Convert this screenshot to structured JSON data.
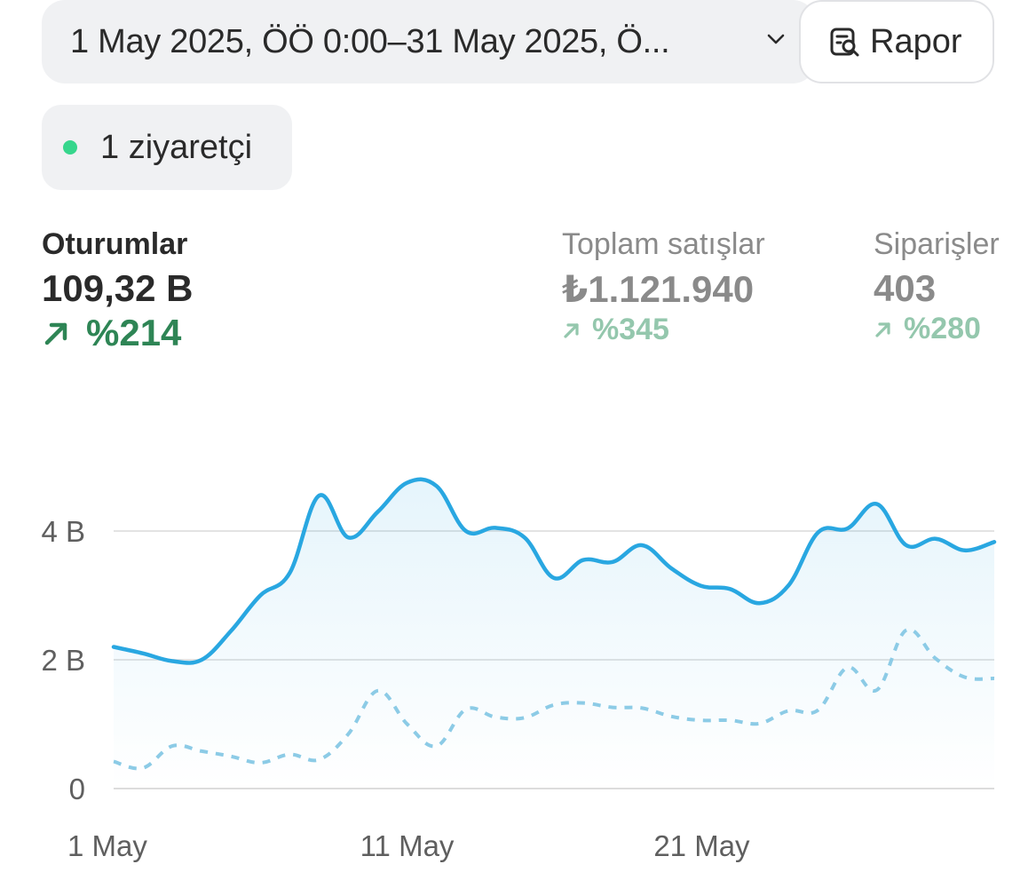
{
  "filters": {
    "date_range": "1 May 2025, ÖÖ 0:00–31 May 2025, Ö...",
    "report_label": "Rapor"
  },
  "visitors": {
    "label": "1 ziyaretçi"
  },
  "metrics": [
    {
      "label": "Oturumlar",
      "value": "109,32 B",
      "change": "%214",
      "active": true
    },
    {
      "label": "Toplam satışlar",
      "value": "₺1.121.940",
      "change": "%345",
      "active": false
    },
    {
      "label": "Siparişler",
      "value": "403",
      "change": "%280",
      "active": false
    }
  ],
  "colors": {
    "current_line": "#29a7e1",
    "previous_line": "#8ccbe6",
    "positive_change": "#2e8555",
    "positive_change_muted": "#94c7ad",
    "live_dot": "#36d68c"
  },
  "chart_data": {
    "type": "line",
    "x": [
      1,
      2,
      3,
      4,
      5,
      6,
      7,
      8,
      9,
      10,
      11,
      12,
      13,
      14,
      15,
      16,
      17,
      18,
      19,
      20,
      21,
      22,
      23,
      24,
      25,
      26,
      27,
      28,
      29,
      30,
      31
    ],
    "x_ticks": [
      {
        "at": 1,
        "label": "1 May"
      },
      {
        "at": 11,
        "label": "11 May"
      },
      {
        "at": 21,
        "label": "21 May"
      }
    ],
    "y_ticks": [
      {
        "value": 0,
        "label": "0"
      },
      {
        "value": 2000,
        "label": "2 B"
      },
      {
        "value": 4000,
        "label": "4 B"
      }
    ],
    "ylim": [
      0,
      5400
    ],
    "grid": true,
    "series": [
      {
        "style": "solid",
        "values": [
          2200,
          2100,
          1980,
          2000,
          2450,
          3000,
          3350,
          4550,
          3900,
          4300,
          4750,
          4700,
          4000,
          4050,
          3900,
          3270,
          3550,
          3520,
          3780,
          3420,
          3150,
          3100,
          2880,
          3160,
          3980,
          4040,
          4420,
          3780,
          3880,
          3700,
          3830
        ]
      },
      {
        "style": "dashed",
        "values": [
          420,
          320,
          660,
          580,
          500,
          400,
          530,
          450,
          850,
          1520,
          1000,
          660,
          1230,
          1110,
          1100,
          1300,
          1330,
          1260,
          1250,
          1120,
          1060,
          1060,
          1010,
          1210,
          1220,
          1880,
          1530,
          2460,
          2020,
          1730,
          1710
        ]
      }
    ]
  }
}
